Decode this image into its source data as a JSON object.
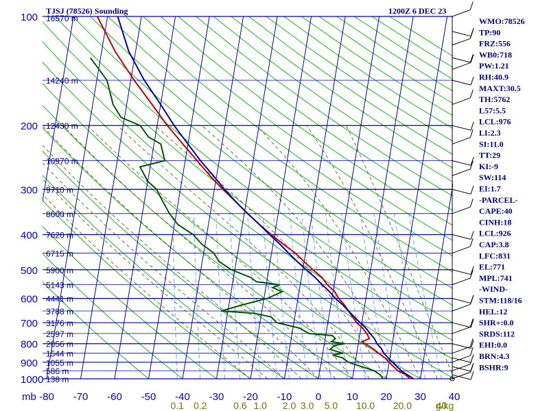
{
  "chart_data": {
    "type": "skew-t",
    "title": "TJSJ (78526) Sounding",
    "time_label": "1200Z  6 DEC 23",
    "pressure_axis_label": "mb",
    "pressure_ticks": [
      100,
      200,
      300,
      400,
      500,
      600,
      700,
      800,
      900,
      1000
    ],
    "temperature_ticks": [
      -80,
      -70,
      -60,
      -50,
      -40,
      -30,
      -20,
      -10,
      0,
      10,
      20,
      30,
      40
    ],
    "mixing_ratio_labels": [
      {
        "text": "0.1",
        "value": 0.1
      },
      {
        "text": "0.2",
        "value": 0.2
      },
      {
        "text": "0.6",
        "value": 0.6
      },
      {
        "text": "1.0",
        "value": 1.0
      },
      {
        "text": "2.0",
        "value": 2.0
      },
      {
        "text": "3.0",
        "value": 3.0
      },
      {
        "text": "5.0",
        "value": 5.0
      },
      {
        "text": "10.0",
        "value": 10.0
      },
      {
        "text": "20.0",
        "value": 20.0
      },
      {
        "text": "40",
        "value": 40
      }
    ],
    "mixing_ratio_unit": "g/kg",
    "height_labels": [
      {
        "p": 100,
        "text": "16570 m"
      },
      {
        "p": 150,
        "text": "14240 m"
      },
      {
        "p": 200,
        "text": "12430 m"
      },
      {
        "p": 250,
        "text": "10970 m"
      },
      {
        "p": 300,
        "text": "9710 m"
      },
      {
        "p": 350,
        "text": "8600 m"
      },
      {
        "p": 400,
        "text": "7620 m"
      },
      {
        "p": 450,
        "text": "6715 m"
      },
      {
        "p": 500,
        "text": "5900 m"
      },
      {
        "p": 550,
        "text": "5143 m"
      },
      {
        "p": 600,
        "text": "4441 m"
      },
      {
        "p": 650,
        "text": "3788 m"
      },
      {
        "p": 700,
        "text": "3176 m"
      },
      {
        "p": 750,
        "text": "2597 m"
      },
      {
        "p": 800,
        "text": "2056 m"
      },
      {
        "p": 850,
        "text": "1544 m"
      },
      {
        "p": 900,
        "text": "1055 m"
      },
      {
        "p": 950,
        "text": "586 m"
      },
      {
        "p": 1000,
        "text": "138 m"
      }
    ],
    "series": [
      {
        "name": "temperature",
        "color": "#c00000",
        "points": [
          [
            100,
            -83
          ],
          [
            125,
            -76
          ],
          [
            150,
            -69
          ],
          [
            175,
            -62.5
          ],
          [
            200,
            -57
          ],
          [
            225,
            -51.5
          ],
          [
            250,
            -46.5
          ],
          [
            275,
            -42
          ],
          [
            300,
            -37.5
          ],
          [
            325,
            -33
          ],
          [
            350,
            -29
          ],
          [
            375,
            -25
          ],
          [
            400,
            -21
          ],
          [
            425,
            -17
          ],
          [
            450,
            -13
          ],
          [
            475,
            -10
          ],
          [
            500,
            -7
          ],
          [
            525,
            -4
          ],
          [
            550,
            -2
          ],
          [
            575,
            0.5
          ],
          [
            600,
            2
          ],
          [
            625,
            4
          ],
          [
            650,
            5.5
          ],
          [
            675,
            7
          ],
          [
            700,
            8.5
          ],
          [
            725,
            10.5
          ],
          [
            750,
            12
          ],
          [
            775,
            13
          ],
          [
            790,
            11
          ],
          [
            800,
            12
          ],
          [
            825,
            14.5
          ],
          [
            850,
            16.5
          ],
          [
            875,
            18.5
          ],
          [
            900,
            20
          ],
          [
            925,
            21.5
          ],
          [
            950,
            23
          ],
          [
            975,
            25.5
          ],
          [
            1000,
            27
          ]
        ]
      },
      {
        "name": "dewpoint",
        "color": "#005500",
        "points": [
          [
            130,
            -83
          ],
          [
            150,
            -77
          ],
          [
            175,
            -74
          ],
          [
            190,
            -71
          ],
          [
            200,
            -65
          ],
          [
            215,
            -62
          ],
          [
            225,
            -58
          ],
          [
            250,
            -56
          ],
          [
            260,
            -63
          ],
          [
            285,
            -60
          ],
          [
            300,
            -57
          ],
          [
            320,
            -55
          ],
          [
            350,
            -52
          ],
          [
            375,
            -49
          ],
          [
            400,
            -44
          ],
          [
            425,
            -41
          ],
          [
            450,
            -37
          ],
          [
            475,
            -35
          ],
          [
            500,
            -31
          ],
          [
            525,
            -25
          ],
          [
            540,
            -23
          ],
          [
            550,
            -16
          ],
          [
            560,
            -18
          ],
          [
            575,
            -15
          ],
          [
            600,
            -19
          ],
          [
            625,
            -26
          ],
          [
            650,
            -32
          ],
          [
            660,
            -22
          ],
          [
            675,
            -17
          ],
          [
            700,
            -15
          ],
          [
            725,
            -8
          ],
          [
            750,
            -5
          ],
          [
            760,
            2
          ],
          [
            775,
            3
          ],
          [
            790,
            2
          ],
          [
            800,
            6
          ],
          [
            810,
            3
          ],
          [
            830,
            2
          ],
          [
            850,
            6
          ],
          [
            860,
            3
          ],
          [
            875,
            6
          ],
          [
            900,
            8
          ],
          [
            925,
            12
          ],
          [
            950,
            16
          ],
          [
            975,
            18
          ],
          [
            1000,
            19
          ]
        ]
      },
      {
        "name": "parcel",
        "color": "#0000aa",
        "points": [
          [
            100,
            -77
          ],
          [
            125,
            -72
          ],
          [
            150,
            -66
          ],
          [
            175,
            -60
          ],
          [
            200,
            -55
          ],
          [
            225,
            -50
          ],
          [
            250,
            -45.5
          ],
          [
            275,
            -41
          ],
          [
            300,
            -37
          ],
          [
            325,
            -33
          ],
          [
            350,
            -29
          ],
          [
            375,
            -25
          ],
          [
            400,
            -21.5
          ],
          [
            425,
            -18
          ],
          [
            450,
            -15
          ],
          [
            475,
            -12
          ],
          [
            500,
            -9
          ],
          [
            525,
            -6
          ],
          [
            550,
            -3.5
          ],
          [
            575,
            -1
          ],
          [
            600,
            1
          ],
          [
            625,
            3.5
          ],
          [
            650,
            5.5
          ],
          [
            675,
            7.5
          ],
          [
            700,
            9.5
          ],
          [
            725,
            11.5
          ],
          [
            750,
            13
          ],
          [
            775,
            14.5
          ],
          [
            800,
            15.5
          ],
          [
            825,
            17
          ],
          [
            850,
            18
          ],
          [
            875,
            19.5
          ],
          [
            900,
            21
          ],
          [
            925,
            22.5
          ],
          [
            950,
            24
          ],
          [
            975,
            26
          ],
          [
            1000,
            28
          ]
        ]
      }
    ],
    "indices": [
      {
        "label": "WMO:78526"
      },
      {
        "label": "TP:90"
      },
      {
        "label": "FRZ:556"
      },
      {
        "label": "WB0:718"
      },
      {
        "label": "PW:1.21"
      },
      {
        "label": "RH:40.9"
      },
      {
        "label": "MAXT:30.5"
      },
      {
        "label": "TH:5762"
      },
      {
        "label": "L57:5.5"
      },
      {
        "label": "LCL:976"
      },
      {
        "label": "LI:2.3"
      },
      {
        "label": "SI:11.0"
      },
      {
        "label": "TT:29"
      },
      {
        "label": "KI:-9"
      },
      {
        "label": "SW:114"
      },
      {
        "label": "EI:1.7"
      },
      {
        "label": "-PARCEL-"
      },
      {
        "label": "CAPE:40"
      },
      {
        "label": "CINH:18"
      },
      {
        "label": "LCL:926"
      },
      {
        "label": "CAP:3.8"
      },
      {
        "label": "LFC:831"
      },
      {
        "label": "EL:771"
      },
      {
        "label": "MPL:741"
      },
      {
        "label": "-WIND-"
      },
      {
        "label": "STM:118/16"
      },
      {
        "label": "HEL:12"
      },
      {
        "label": "SHR+:0.0"
      },
      {
        "label": "SRDS:112"
      },
      {
        "label": "EHI:0.0"
      },
      {
        "label": "BRN:4.3"
      },
      {
        "label": "BSHR:9"
      }
    ],
    "wind_barbs_pressure": [
      100,
      110,
      120,
      130,
      140,
      150,
      175,
      200,
      225,
      250,
      275,
      300,
      350,
      400,
      450,
      500,
      550,
      600,
      650,
      700,
      750,
      800,
      850,
      875,
      900,
      925,
      950,
      975,
      1000
    ],
    "grid": true,
    "colors": {
      "isobar": "#0000aa",
      "isotherm": "#0000aa",
      "dry_adiabat": "#00aa00",
      "moist_adiabat": "#4d4d00",
      "mixing_ratio": "#4da6ff"
    }
  }
}
